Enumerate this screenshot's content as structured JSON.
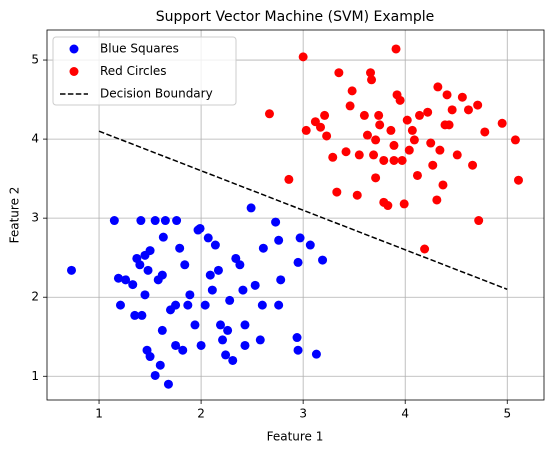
{
  "chart_data": {
    "type": "scatter",
    "title": "Support Vector Machine (SVM) Example",
    "x_label": "Feature 1",
    "y_label": "Feature 2",
    "xlim": [
      0.49,
      5.36
    ],
    "ylim": [
      0.7,
      5.38
    ],
    "xticks": [
      1,
      2,
      3,
      4,
      5
    ],
    "yticks": [
      1,
      2,
      3,
      4,
      5
    ],
    "grid": true,
    "legend": "upper left",
    "series": [
      {
        "name": "Blue Squares",
        "color": "#0000ff",
        "kind": "scatter",
        "x": [
          0.73,
          1.15,
          1.19,
          1.26,
          1.21,
          1.33,
          1.37,
          1.4,
          1.41,
          1.45,
          1.48,
          1.5,
          1.35,
          1.42,
          1.45,
          1.47,
          1.5,
          1.55,
          1.6,
          1.55,
          1.58,
          1.62,
          1.63,
          1.65,
          1.68,
          1.7,
          1.75,
          1.76,
          1.79,
          1.82,
          1.84,
          1.89,
          1.94,
          1.97,
          1.99,
          2.0,
          2.04,
          2.07,
          2.09,
          2.11,
          2.14,
          2.17,
          2.19,
          2.21,
          2.24,
          2.28,
          2.31,
          2.34,
          2.38,
          2.41,
          2.43,
          2.49,
          2.53,
          2.58,
          2.6,
          2.61,
          2.73,
          2.76,
          2.78,
          2.76,
          2.94,
          2.95,
          2.95,
          2.97,
          3.07,
          3.19,
          3.13,
          1.62,
          1.75,
          1.87,
          2.43,
          2.26
        ],
        "values": [
          2.34,
          2.97,
          2.24,
          2.22,
          1.9,
          2.16,
          2.49,
          2.41,
          2.97,
          2.53,
          2.34,
          2.59,
          1.77,
          1.77,
          2.03,
          1.33,
          1.25,
          1.01,
          1.14,
          2.97,
          2.22,
          2.28,
          2.76,
          2.97,
          0.9,
          1.84,
          1.39,
          2.97,
          2.62,
          1.33,
          2.41,
          2.03,
          1.65,
          2.85,
          2.87,
          1.39,
          1.9,
          2.75,
          2.28,
          2.09,
          2.66,
          2.34,
          1.65,
          1.46,
          1.27,
          1.96,
          1.2,
          2.49,
          2.41,
          2.09,
          1.65,
          3.13,
          2.15,
          1.46,
          1.9,
          2.62,
          2.95,
          2.72,
          2.22,
          1.9,
          1.49,
          1.33,
          2.44,
          2.75,
          2.66,
          2.47,
          1.28,
          1.58,
          1.9,
          1.9,
          1.39,
          1.58
        ]
      },
      {
        "name": "Red Circles",
        "color": "#ff0000",
        "kind": "scatter",
        "x": [
          3.0,
          3.91,
          2.67,
          2.86,
          3.03,
          3.12,
          3.17,
          3.21,
          3.23,
          3.29,
          3.35,
          3.33,
          3.42,
          3.46,
          3.48,
          3.53,
          3.55,
          3.6,
          3.63,
          3.66,
          3.67,
          3.69,
          3.71,
          3.74,
          3.75,
          3.79,
          3.79,
          3.83,
          3.86,
          3.89,
          3.92,
          3.95,
          3.97,
          3.99,
          4.02,
          4.04,
          4.07,
          4.12,
          4.14,
          4.19,
          4.22,
          4.25,
          4.27,
          4.31,
          4.32,
          4.34,
          4.37,
          4.39,
          4.41,
          4.43,
          4.46,
          4.51,
          4.56,
          4.62,
          4.66,
          4.71,
          4.72,
          4.78,
          4.95,
          5.08,
          5.11,
          3.89,
          4.09,
          3.71
        ],
        "values": [
          5.04,
          5.14,
          4.32,
          3.49,
          4.11,
          4.22,
          4.15,
          4.3,
          4.04,
          3.77,
          4.84,
          3.33,
          3.84,
          4.42,
          4.61,
          3.29,
          3.8,
          4.3,
          4.05,
          4.84,
          4.75,
          3.8,
          3.99,
          4.3,
          4.18,
          3.73,
          3.2,
          3.16,
          4.11,
          3.92,
          4.56,
          4.49,
          3.73,
          3.18,
          4.24,
          3.86,
          4.11,
          3.54,
          4.3,
          2.61,
          4.34,
          3.95,
          3.67,
          3.23,
          4.66,
          3.86,
          3.42,
          4.18,
          4.56,
          4.18,
          4.37,
          3.8,
          4.53,
          4.37,
          3.67,
          4.43,
          2.97,
          4.09,
          4.2,
          3.99,
          3.48,
          3.73,
          3.99,
          3.51
        ]
      },
      {
        "name": "Decision Boundary",
        "color": "#000000",
        "kind": "line",
        "dashed": true,
        "x": [
          1,
          5
        ],
        "values": [
          4.1,
          2.1
        ]
      }
    ]
  }
}
